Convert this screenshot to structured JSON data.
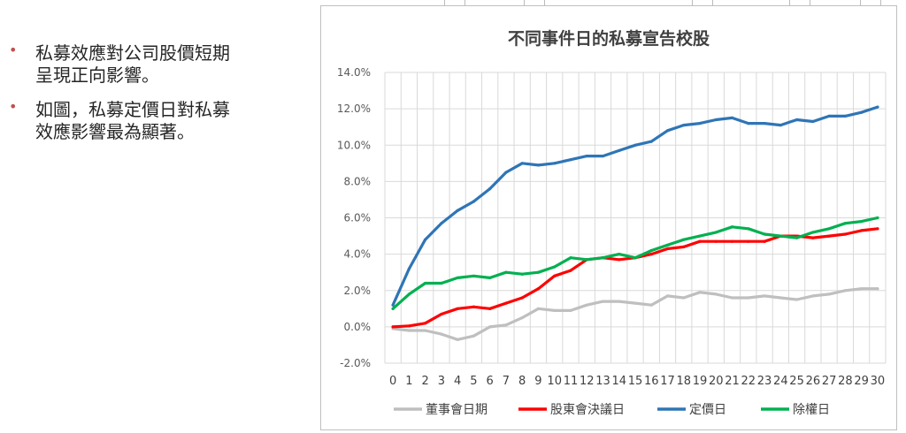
{
  "bullets": [
    {
      "marker": "•",
      "text": "私募效應對公司股價短期\n呈現正向影響。"
    },
    {
      "marker": "•",
      "text": "如圖，私募定價日對私募\n效應影響最為顯著。"
    }
  ],
  "colors": {
    "bullet": "#c0504d",
    "gray_series": "#bfbfbf",
    "red_series": "#ff0000",
    "blue_series": "#2e75b6",
    "green_series": "#00b050",
    "grid": "#d9d9d9"
  },
  "chart_data": {
    "type": "line",
    "title": "不同事件日的私募宣告校股",
    "xlabel": "",
    "ylabel": "",
    "x": [
      0,
      1,
      2,
      3,
      4,
      5,
      6,
      7,
      8,
      9,
      10,
      11,
      12,
      13,
      14,
      15,
      16,
      17,
      18,
      19,
      20,
      21,
      22,
      23,
      24,
      25,
      26,
      27,
      28,
      29,
      30
    ],
    "ylim": [
      -2.0,
      14.0
    ],
    "yticks": [
      "-2.0%",
      "0.0%",
      "2.0%",
      "4.0%",
      "6.0%",
      "8.0%",
      "10.0%",
      "12.0%",
      "14.0%"
    ],
    "grid": true,
    "legend_position": "bottom",
    "series": [
      {
        "name": "董事會日期",
        "color": "#bfbfbf",
        "values": [
          -0.1,
          -0.2,
          -0.2,
          -0.4,
          -0.7,
          -0.5,
          0.0,
          0.1,
          0.5,
          1.0,
          0.9,
          0.9,
          1.2,
          1.4,
          1.4,
          1.3,
          1.2,
          1.7,
          1.6,
          1.9,
          1.8,
          1.6,
          1.6,
          1.7,
          1.6,
          1.5,
          1.7,
          1.8,
          2.0,
          2.1,
          2.1
        ]
      },
      {
        "name": "股東會決議日",
        "color": "#ff0000",
        "values": [
          0.0,
          0.05,
          0.2,
          0.7,
          1.0,
          1.1,
          1.0,
          1.3,
          1.6,
          2.1,
          2.8,
          3.1,
          3.7,
          3.8,
          3.7,
          3.8,
          4.0,
          4.3,
          4.4,
          4.7,
          4.7,
          4.7,
          4.7,
          4.7,
          5.0,
          5.0,
          4.9,
          5.0,
          5.1,
          5.3,
          5.4
        ]
      },
      {
        "name": "定價日",
        "color": "#2e75b6",
        "values": [
          1.2,
          3.2,
          4.8,
          5.7,
          6.4,
          6.9,
          7.6,
          8.5,
          9.0,
          8.9,
          9.0,
          9.2,
          9.4,
          9.4,
          9.7,
          10.0,
          10.2,
          10.8,
          11.1,
          11.2,
          11.4,
          11.5,
          11.2,
          11.2,
          11.1,
          11.4,
          11.3,
          11.6,
          11.6,
          11.8,
          12.1
        ]
      },
      {
        "name": "除權日",
        "color": "#00b050",
        "values": [
          1.0,
          1.8,
          2.4,
          2.4,
          2.7,
          2.8,
          2.7,
          3.0,
          2.9,
          3.0,
          3.3,
          3.8,
          3.7,
          3.8,
          4.0,
          3.8,
          4.2,
          4.5,
          4.8,
          5.0,
          5.2,
          5.5,
          5.4,
          5.1,
          5.0,
          4.9,
          5.2,
          5.4,
          5.7,
          5.8,
          6.0
        ]
      }
    ]
  }
}
